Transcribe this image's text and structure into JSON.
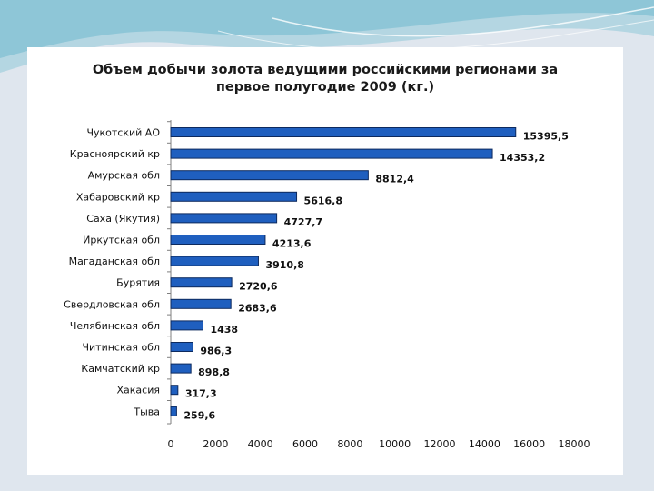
{
  "chart_data": {
    "type": "bar",
    "orientation": "horizontal",
    "title_line1": "Объем добычи золота ведущими российскими регионами за",
    "title_line2": "первое полугодие 2009 (кг.)",
    "categories": [
      "Чукотский АО",
      "Красноярский кр",
      "Амурская обл",
      "Хабаровский кр",
      "Саха (Якутия)",
      "Иркутская обл",
      "Магаданская обл",
      "Бурятия",
      "Свердловская обл",
      "Челябинская обл",
      "Читинская обл",
      "Камчатский кр",
      "Хакасия",
      "Тыва"
    ],
    "values": [
      15395.5,
      14353.2,
      8812.4,
      5616.8,
      4727.7,
      4213.6,
      3910.8,
      2720.6,
      2683.6,
      1438,
      986.3,
      898.8,
      317.3,
      259.6
    ],
    "value_labels": [
      "15395,5",
      "14353,2",
      "8812,4",
      "5616,8",
      "4727,7",
      "4213,6",
      "3910,8",
      "2720,6",
      "2683,6",
      "1438",
      "986,3",
      "898,8",
      "317,3",
      "259,6"
    ],
    "x_ticks": [
      0,
      2000,
      4000,
      6000,
      8000,
      10000,
      12000,
      14000,
      16000,
      18000
    ],
    "xlim": [
      0,
      18000
    ],
    "grid": false,
    "legend": "none",
    "bar_color": "#1f5fbf",
    "bar_edge_color": "#0d2a5e"
  }
}
